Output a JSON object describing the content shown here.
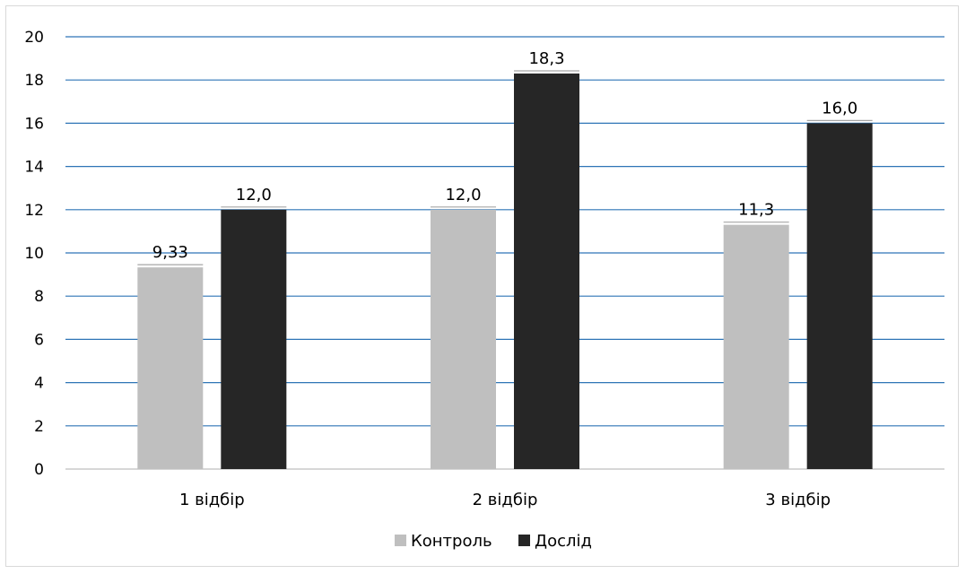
{
  "chart_data": {
    "type": "bar",
    "categories": [
      "1 відбір",
      "2 відбір",
      "3 відбір"
    ],
    "series": [
      {
        "name": "Контроль",
        "values": [
          9.33,
          12.0,
          11.3
        ],
        "labels": [
          "9,33",
          "12,0",
          "11,3"
        ],
        "color": "#bfbfbf"
      },
      {
        "name": "Дослід",
        "values": [
          12.0,
          18.3,
          16.0
        ],
        "labels": [
          "12,0",
          "18,3",
          "16,0"
        ],
        "color": "#262626"
      }
    ],
    "yticks": [
      "0",
      "2",
      "4",
      "6",
      "8",
      "10",
      "12",
      "14",
      "16",
      "18",
      "20"
    ],
    "ylim": [
      0,
      20
    ],
    "grid": true,
    "gridline_color": "#2e75b6",
    "legend_position": "bottom"
  }
}
